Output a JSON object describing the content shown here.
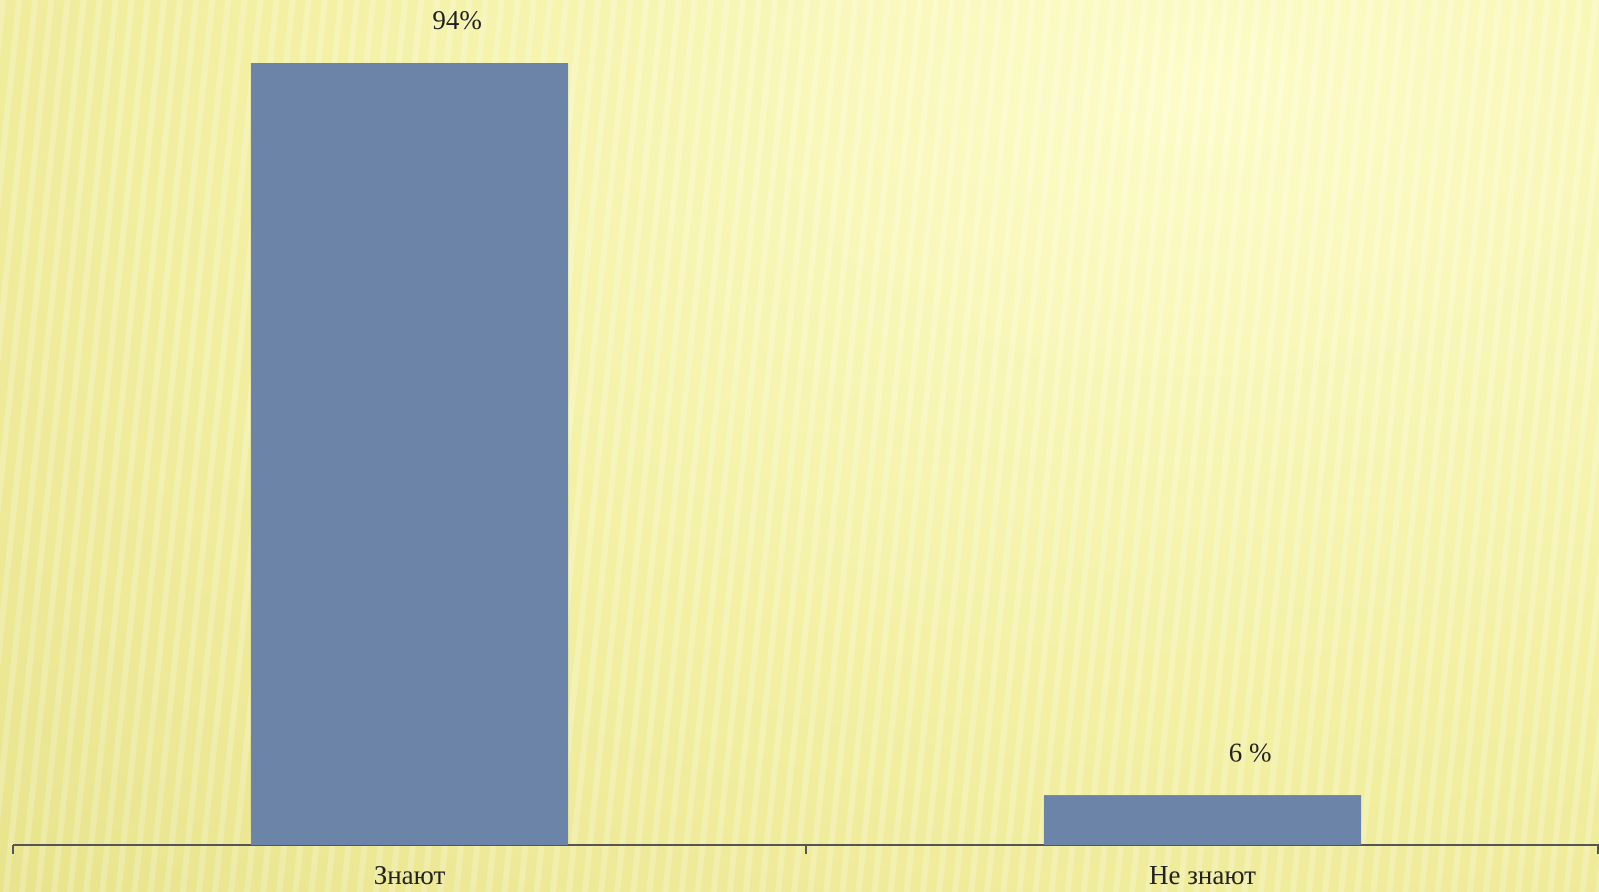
{
  "chart_data": {
    "type": "bar",
    "categories": [
      "Знают",
      "Не знают"
    ],
    "values": [
      94,
      6
    ],
    "value_labels": [
      "94%",
      "6 %"
    ],
    "color": "#6b84a8"
  }
}
